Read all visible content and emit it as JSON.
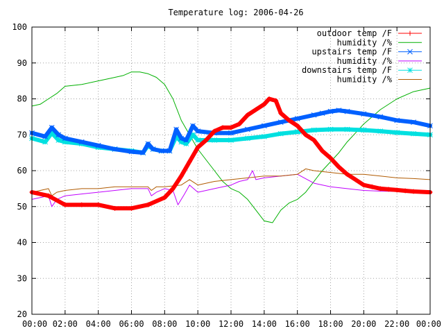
{
  "chart_data": {
    "type": "line",
    "title": "Temperature log: 2006-04-26",
    "xlabel": "",
    "ylabel": "",
    "xlim": [
      0,
      24
    ],
    "ylim": [
      20,
      100
    ],
    "x_ticks": [
      "00:00",
      "02:00",
      "04:00",
      "06:00",
      "08:00",
      "10:00",
      "12:00",
      "14:00",
      "16:00",
      "18:00",
      "20:00",
      "22:00",
      "00:00"
    ],
    "y_ticks": [
      "20",
      "30",
      "40",
      "50",
      "60",
      "70",
      "80",
      "90",
      "100"
    ],
    "grid": true,
    "legend_position": "top-right",
    "series": [
      {
        "name": "outdoor temp /F",
        "color": "#ff0000",
        "marker": "plus",
        "x": [
          0,
          1,
          2,
          3,
          4,
          5,
          6,
          7,
          8,
          8.5,
          9,
          9.5,
          10,
          10.5,
          11,
          11.5,
          12,
          12.5,
          13,
          13.5,
          14,
          14.3,
          14.7,
          15,
          15.5,
          16,
          16.5,
          17,
          17.5,
          18,
          18.5,
          19,
          19.5,
          20,
          20.5,
          21,
          21.5,
          22,
          22.5,
          23,
          24
        ],
        "y": [
          54,
          53,
          50.5,
          50.5,
          50.5,
          49.5,
          49.5,
          50.5,
          52.5,
          55,
          58.5,
          62.5,
          66.5,
          68.5,
          71,
          72,
          72,
          73,
          75.5,
          77,
          78.5,
          80,
          79.5,
          76,
          74,
          72.5,
          70,
          68.5,
          65.5,
          63.5,
          61,
          59,
          57.5,
          56,
          55.5,
          55,
          54.8,
          54.6,
          54.4,
          54.2,
          54
        ]
      },
      {
        "name": "humidity /%",
        "color": "#00b000",
        "marker": "none",
        "x": [
          0,
          0.5,
          1,
          1.5,
          2,
          3,
          4,
          5,
          5.5,
          6,
          6.5,
          7,
          7.5,
          8,
          8.5,
          9,
          9.5,
          10,
          10.5,
          11,
          11.5,
          12,
          12.5,
          13,
          13.5,
          14,
          14.5,
          15,
          15.5,
          16,
          16.5,
          17,
          17.5,
          18,
          18.5,
          19,
          19.5,
          20,
          21,
          22,
          23,
          24
        ],
        "y": [
          78,
          78.5,
          80,
          81.5,
          83.5,
          84,
          85,
          86,
          86.5,
          87.5,
          87.5,
          87,
          86,
          84,
          80,
          74,
          70,
          66,
          63,
          60,
          57,
          55,
          54,
          52,
          49,
          46,
          45.5,
          49,
          51,
          52,
          54,
          57,
          60,
          62.5,
          65,
          68,
          70.5,
          73,
          77,
          80,
          82,
          83
        ]
      },
      {
        "name": "upstairs temp /F",
        "color": "#0060ff",
        "marker": "cross",
        "x": [
          0,
          0.8,
          1.2,
          1.6,
          2,
          3,
          4,
          5,
          6,
          6.7,
          7,
          7.3,
          7.8,
          8.3,
          8.7,
          9,
          9.3,
          9.7,
          10,
          11,
          12,
          13,
          14,
          15,
          16,
          17,
          17.5,
          18,
          18.5,
          19,
          20,
          21,
          22,
          23,
          24
        ],
        "y": [
          70.5,
          69.5,
          72,
          70,
          69,
          68,
          67,
          66,
          65.3,
          65,
          67.5,
          66,
          65.5,
          65.5,
          71.5,
          69,
          68.5,
          72.5,
          71,
          70.5,
          70.5,
          71.5,
          72.5,
          73.5,
          74.5,
          75.5,
          76,
          76.5,
          76.8,
          76.5,
          75.8,
          75,
          74,
          73.5,
          72.5
        ]
      },
      {
        "name": "humidity /%",
        "color": "#c000ff",
        "marker": "none",
        "x": [
          0,
          0.5,
          1,
          1.2,
          1.5,
          2,
          3,
          4,
          5,
          6,
          7,
          7.2,
          7.5,
          8,
          8.5,
          8.8,
          9.2,
          9.5,
          10,
          11,
          12,
          12.5,
          13,
          13.3,
          13.5,
          14,
          15,
          16,
          17,
          18,
          19,
          20,
          21,
          22,
          23,
          24
        ],
        "y": [
          52,
          52.5,
          53,
          50,
          52,
          53,
          53.5,
          54,
          54.5,
          55,
          55,
          53,
          54,
          55,
          54.5,
          50.5,
          53.5,
          56,
          54,
          55,
          56,
          57,
          57.5,
          60,
          57.5,
          58,
          58.5,
          59,
          56.5,
          55.5,
          55,
          54.5,
          54.3,
          54.2,
          54.1,
          54
        ]
      },
      {
        "name": "downstairs temp /F",
        "color": "#00e0e0",
        "marker": "star",
        "x": [
          0,
          0.8,
          1.2,
          1.6,
          2,
          3,
          4,
          5,
          6,
          6.7,
          7,
          7.3,
          7.8,
          8.3,
          8.7,
          9,
          9.3,
          9.7,
          10,
          11,
          12,
          13,
          14,
          15,
          16,
          17,
          18,
          19,
          20,
          21,
          22,
          23,
          24
        ],
        "y": [
          69,
          68,
          70.5,
          68.5,
          68,
          67.5,
          66.5,
          66,
          65.5,
          65,
          67,
          66,
          65.5,
          65.5,
          69.5,
          68,
          67.5,
          70,
          68.5,
          68.5,
          68.5,
          69,
          69.5,
          70.3,
          70.8,
          71.3,
          71.5,
          71.5,
          71.3,
          71,
          70.6,
          70.3,
          70
        ]
      },
      {
        "name": "humidity /%",
        "color": "#b05a00",
        "marker": "none",
        "x": [
          0,
          0.5,
          1,
          1.2,
          1.5,
          2,
          3,
          4,
          5,
          6,
          7,
          7.2,
          7.5,
          8,
          9,
          9.5,
          10,
          11,
          12,
          13,
          14,
          15,
          16,
          16.5,
          17,
          18,
          19,
          20,
          21,
          22,
          23,
          24
        ],
        "y": [
          54,
          54.5,
          55,
          53,
          54,
          54.5,
          55,
          55,
          55.5,
          55.5,
          55.5,
          54.5,
          55.5,
          55.5,
          56,
          57.5,
          56,
          57,
          57.5,
          58,
          58.5,
          58.5,
          59,
          60.5,
          60,
          59.5,
          59,
          59,
          58.5,
          58,
          57.8,
          57.5
        ]
      }
    ]
  }
}
